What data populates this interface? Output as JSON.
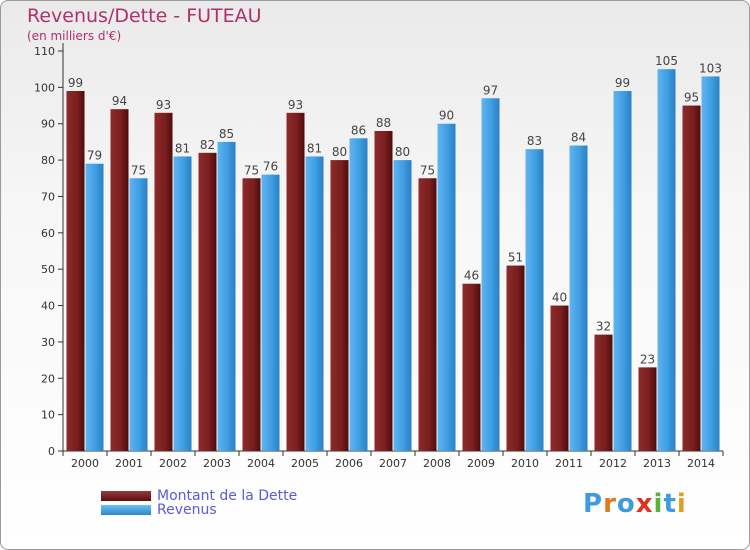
{
  "title": "Revenus/Dette - FUTEAU",
  "subtitle": "(en milliers d'€)",
  "logo": "Proxiti",
  "colors": {
    "dette": "#7a1e1e",
    "revenus": "#3d9be0",
    "title": "#b0306a",
    "legend_text": "#5a5adc"
  },
  "chart_data": {
    "type": "bar",
    "categories": [
      "2000",
      "2001",
      "2002",
      "2003",
      "2004",
      "2005",
      "2006",
      "2007",
      "2008",
      "2009",
      "2010",
      "2011",
      "2012",
      "2013",
      "2014"
    ],
    "series": [
      {
        "name": "Montant de la Dette",
        "values": [
          99,
          94,
          93,
          82,
          75,
          93,
          80,
          88,
          75,
          46,
          51,
          40,
          32,
          23,
          95
        ]
      },
      {
        "name": "Revenus",
        "values": [
          79,
          75,
          81,
          85,
          76,
          81,
          86,
          80,
          90,
          97,
          83,
          84,
          99,
          105,
          103
        ]
      }
    ],
    "ylim": [
      0,
      110
    ],
    "yticks": [
      0,
      10,
      20,
      30,
      40,
      50,
      60,
      70,
      80,
      90,
      100,
      110
    ],
    "grid": false,
    "legend": "bottom-left"
  }
}
